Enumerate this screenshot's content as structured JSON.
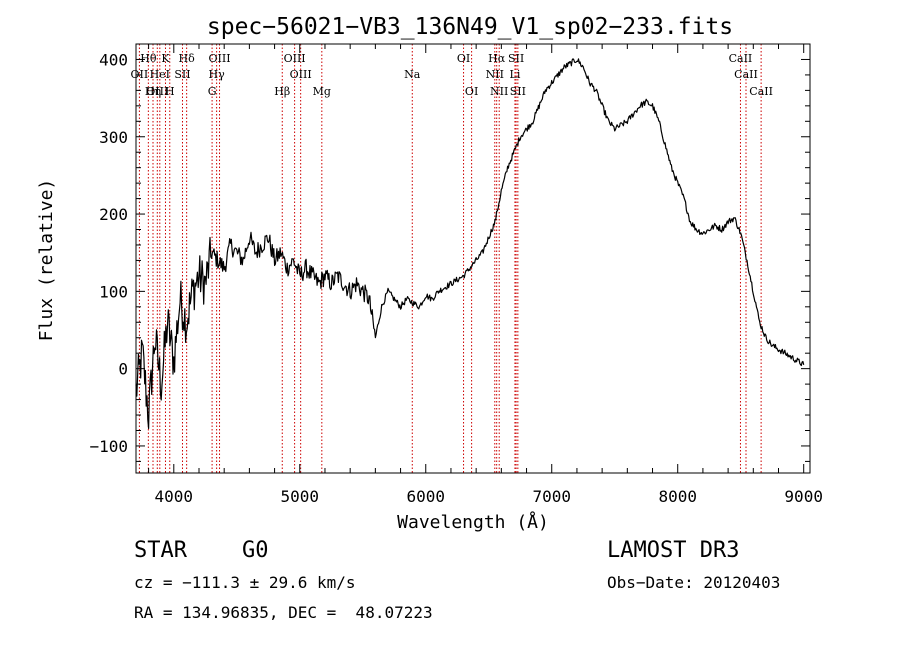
{
  "chart_data": {
    "type": "line",
    "title": "spec−56021−VB3_136N49_V1_sp02−233.fits",
    "xlabel": "Wavelength (Å)",
    "ylabel": "Flux (relative)",
    "xlim": [
      3700,
      9050
    ],
    "ylim": [
      -135,
      420
    ],
    "xticks": [
      4000,
      5000,
      6000,
      7000,
      8000,
      9000
    ],
    "yticks": [
      -100,
      0,
      100,
      200,
      300,
      400
    ],
    "xtick_labels": [
      "4000",
      "5000",
      "6000",
      "7000",
      "8000",
      "9000"
    ],
    "ytick_labels": [
      "−100",
      "0",
      "100",
      "200",
      "300",
      "400"
    ],
    "series": [
      {
        "name": "flux",
        "x": [
          3700,
          3750,
          3800,
          3850,
          3900,
          3950,
          4000,
          4050,
          4100,
          4150,
          4200,
          4250,
          4300,
          4350,
          4400,
          4450,
          4500,
          4550,
          4600,
          4650,
          4700,
          4750,
          4800,
          4850,
          4900,
          4950,
          5000,
          5050,
          5100,
          5150,
          5200,
          5250,
          5300,
          5350,
          5400,
          5450,
          5500,
          5550,
          5600,
          5650,
          5700,
          5750,
          5800,
          5850,
          5900,
          5950,
          6000,
          6050,
          6100,
          6150,
          6200,
          6250,
          6300,
          6350,
          6400,
          6450,
          6500,
          6550,
          6600,
          6650,
          6700,
          6750,
          6800,
          6850,
          6900,
          6950,
          7000,
          7050,
          7100,
          7150,
          7200,
          7250,
          7300,
          7350,
          7400,
          7450,
          7500,
          7550,
          7600,
          7650,
          7700,
          7750,
          7800,
          7850,
          7900,
          7950,
          8000,
          8050,
          8100,
          8150,
          8200,
          8250,
          8300,
          8350,
          8400,
          8450,
          8500,
          8550,
          8600,
          8650,
          8700,
          8750,
          8800,
          8850,
          8900,
          8950,
          9000
        ],
        "y": [
          -30,
          20,
          -60,
          40,
          -20,
          60,
          10,
          90,
          60,
          100,
          120,
          110,
          150,
          140,
          130,
          160,
          150,
          140,
          170,
          150,
          160,
          170,
          140,
          150,
          130,
          140,
          120,
          130,
          120,
          110,
          120,
          110,
          120,
          110,
          100,
          110,
          100,
          90,
          40,
          80,
          100,
          90,
          80,
          90,
          85,
          80,
          95,
          90,
          100,
          105,
          110,
          115,
          120,
          130,
          140,
          150,
          170,
          190,
          230,
          260,
          280,
          300,
          310,
          320,
          340,
          360,
          370,
          380,
          390,
          395,
          400,
          390,
          370,
          360,
          340,
          320,
          310,
          315,
          320,
          330,
          340,
          345,
          340,
          320,
          290,
          260,
          240,
          220,
          190,
          180,
          175,
          180,
          185,
          180,
          190,
          195,
          175,
          140,
          100,
          60,
          40,
          30,
          25,
          20,
          15,
          10,
          5
        ]
      }
    ],
    "spectral_lines": [
      {
        "label": "Hθ",
        "wavelength": 3798,
        "row": 1
      },
      {
        "label": "K",
        "wavelength": 3934,
        "row": 1
      },
      {
        "label": "Hδ",
        "wavelength": 4102,
        "row": 1
      },
      {
        "label": "OIII",
        "wavelength": 4363,
        "row": 1
      },
      {
        "label": "OIII",
        "wavelength": 4959,
        "row": 1
      },
      {
        "label": "OI",
        "wavelength": 6300,
        "row": 1
      },
      {
        "label": "Hα",
        "wavelength": 6563,
        "row": 1
      },
      {
        "label": "SII",
        "wavelength": 6717,
        "row": 1
      },
      {
        "label": "CaII",
        "wavelength": 8498,
        "row": 1
      },
      {
        "label": "OII",
        "wavelength": 3727,
        "row": 2
      },
      {
        "label": "HeI",
        "wavelength": 3889,
        "row": 2
      },
      {
        "label": "SII",
        "wavelength": 4069,
        "row": 2
      },
      {
        "label": "Hγ",
        "wavelength": 4340,
        "row": 2
      },
      {
        "label": "OIII",
        "wavelength": 5007,
        "row": 2
      },
      {
        "label": "Na",
        "wavelength": 5893,
        "row": 2
      },
      {
        "label": "NII",
        "wavelength": 6548,
        "row": 2
      },
      {
        "label": "Li",
        "wavelength": 6708,
        "row": 2
      },
      {
        "label": "CaII",
        "wavelength": 8542,
        "row": 2
      },
      {
        "label": "OIII",
        "wavelength": 3869,
        "row": 3
      },
      {
        "label": "Hη",
        "wavelength": 3835,
        "row": 3
      },
      {
        "label": "H",
        "wavelength": 3968,
        "row": 3
      },
      {
        "label": "G",
        "wavelength": 4304,
        "row": 3
      },
      {
        "label": "Hβ",
        "wavelength": 4861,
        "row": 3
      },
      {
        "label": "Mg",
        "wavelength": 5175,
        "row": 3
      },
      {
        "label": "OI",
        "wavelength": 6364,
        "row": 3
      },
      {
        "label": "NII",
        "wavelength": 6583,
        "row": 3
      },
      {
        "label": "SII",
        "wavelength": 6731,
        "row": 3
      },
      {
        "label": "CaII",
        "wavelength": 8662,
        "row": 3
      }
    ],
    "line_color": "#000000",
    "marker_color": "#cc0000"
  },
  "footer": {
    "class_label": "STAR",
    "subclass_label": "G0",
    "survey": "LAMOST DR3",
    "cz_text": "cz = −111.3 ± 29.6 km/s",
    "obs_date_text": "Obs−Date: 20120403",
    "coords_text": "RA = 134.96835, DEC =  48.07223"
  }
}
